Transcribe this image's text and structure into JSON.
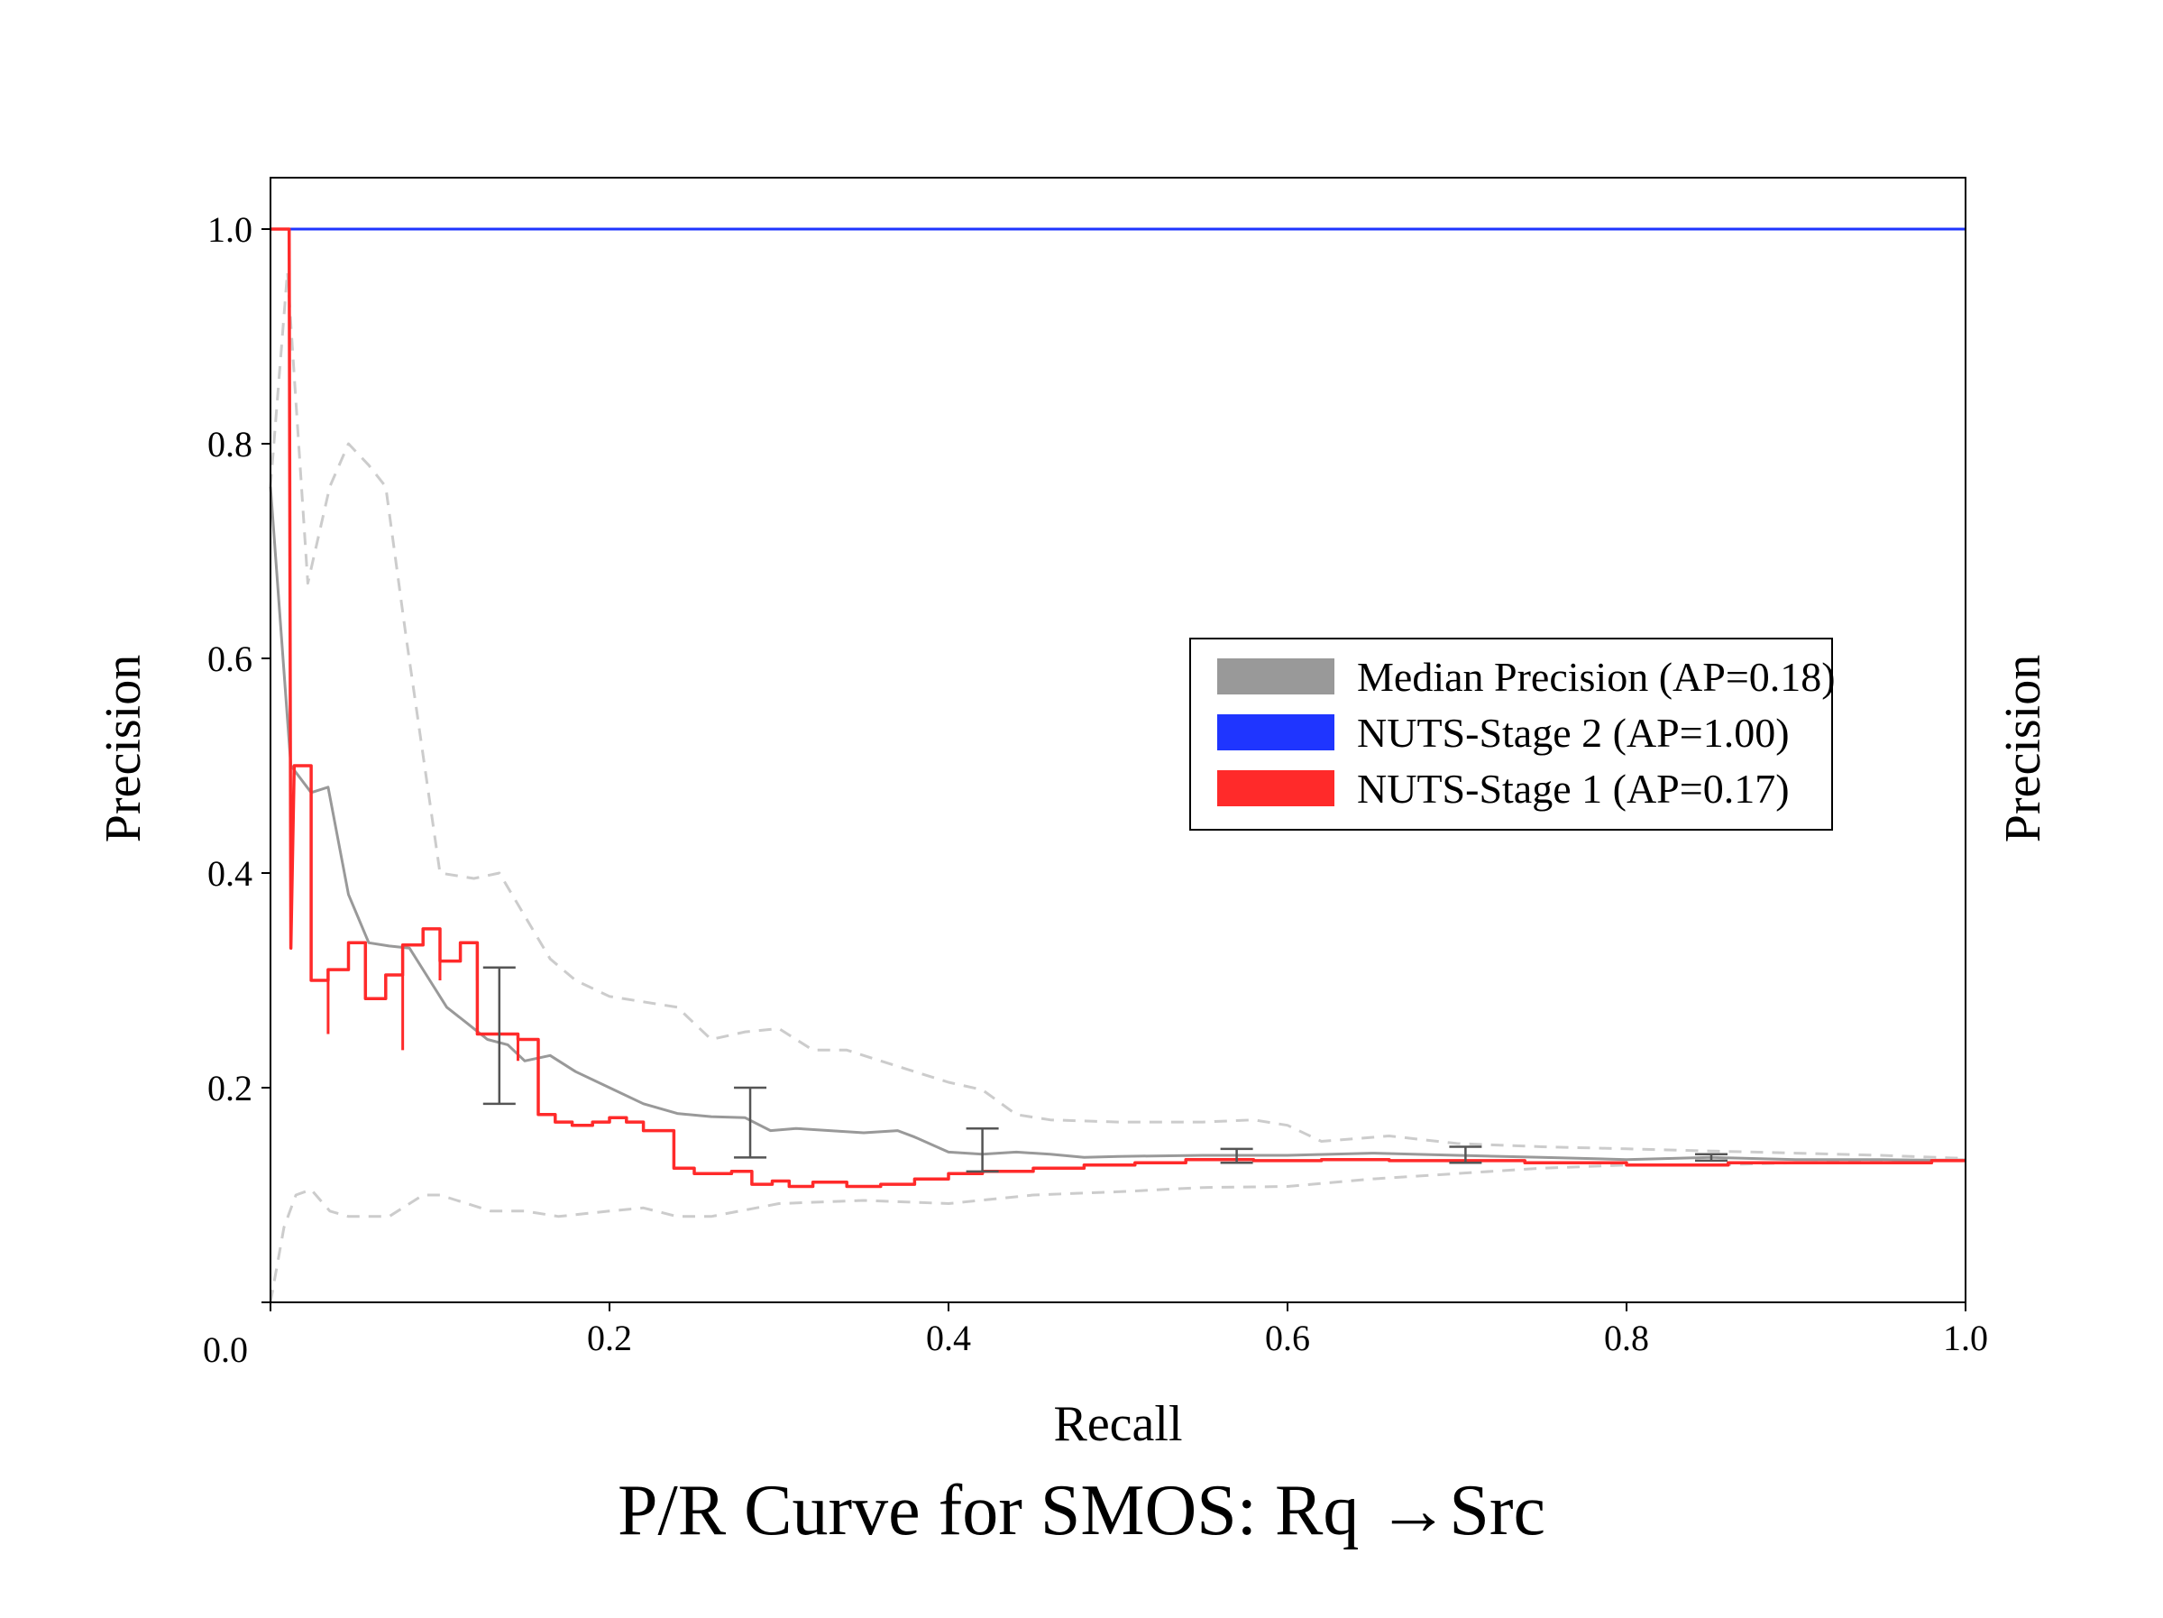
{
  "chart_data": {
    "type": "line",
    "title": "P/R Curve for SMOS: Rq →Src",
    "xlabel": "Recall",
    "ylabel": "Precision",
    "ylabel_right": "Precision",
    "xlim": [
      0.0,
      1.0
    ],
    "ylim": [
      0.0,
      1.05
    ],
    "x_ticks": [
      0.0,
      0.2,
      0.4,
      0.6,
      0.8,
      1.0
    ],
    "x_tick_labels": [
      "0.0",
      "0.2",
      "0.4",
      "0.6",
      "0.8",
      "1.0"
    ],
    "y_ticks": [
      0.0,
      0.2,
      0.4,
      0.6,
      0.8,
      1.0
    ],
    "y_tick_labels": [
      "",
      "0.2",
      "0.4",
      "0.6",
      "0.8",
      "1.0"
    ],
    "grid": false,
    "legend_position": "center-right",
    "series": [
      {
        "name": "Median Precision (AP=0.18)",
        "color": "#999999",
        "style": "solid",
        "x": [
          0.0,
          0.012,
          0.024,
          0.034,
          0.046,
          0.058,
          0.07,
          0.082,
          0.094,
          0.104,
          0.116,
          0.128,
          0.14,
          0.15,
          0.165,
          0.18,
          0.2,
          0.22,
          0.24,
          0.26,
          0.28,
          0.295,
          0.31,
          0.33,
          0.35,
          0.37,
          0.38,
          0.4,
          0.42,
          0.44,
          0.46,
          0.48,
          0.5,
          0.55,
          0.6,
          0.65,
          0.7,
          0.75,
          0.8,
          0.85,
          0.9,
          0.95,
          1.0
        ],
        "y": [
          0.76,
          0.5,
          0.475,
          0.48,
          0.38,
          0.335,
          0.332,
          0.33,
          0.3,
          0.275,
          0.26,
          0.245,
          0.24,
          0.225,
          0.23,
          0.215,
          0.2,
          0.185,
          0.176,
          0.173,
          0.172,
          0.16,
          0.162,
          0.16,
          0.158,
          0.16,
          0.154,
          0.14,
          0.138,
          0.14,
          0.138,
          0.135,
          0.136,
          0.137,
          0.137,
          0.139,
          0.137,
          0.135,
          0.133,
          0.135,
          0.133,
          0.133,
          0.132
        ]
      },
      {
        "name": "Upper band",
        "color": "#cccccc",
        "style": "dashed",
        "x": [
          0.0,
          0.01,
          0.022,
          0.035,
          0.046,
          0.058,
          0.068,
          0.08,
          0.1,
          0.12,
          0.135,
          0.15,
          0.165,
          0.18,
          0.2,
          0.22,
          0.24,
          0.26,
          0.28,
          0.3,
          0.32,
          0.34,
          0.36,
          0.38,
          0.4,
          0.42,
          0.44,
          0.46,
          0.5,
          0.55,
          0.58,
          0.6,
          0.62,
          0.66,
          0.7,
          0.75,
          0.8,
          0.85,
          0.9,
          0.95,
          1.0
        ],
        "y": [
          0.76,
          0.96,
          0.67,
          0.76,
          0.8,
          0.78,
          0.76,
          0.62,
          0.4,
          0.395,
          0.4,
          0.36,
          0.32,
          0.3,
          0.285,
          0.28,
          0.275,
          0.245,
          0.252,
          0.255,
          0.235,
          0.235,
          0.225,
          0.215,
          0.205,
          0.198,
          0.175,
          0.17,
          0.168,
          0.168,
          0.17,
          0.165,
          0.15,
          0.155,
          0.148,
          0.145,
          0.143,
          0.141,
          0.139,
          0.137,
          0.134
        ]
      },
      {
        "name": "Lower band",
        "color": "#cccccc",
        "style": "dashed",
        "x": [
          0.0,
          0.008,
          0.015,
          0.024,
          0.035,
          0.046,
          0.058,
          0.07,
          0.09,
          0.1,
          0.11,
          0.13,
          0.15,
          0.17,
          0.2,
          0.22,
          0.24,
          0.26,
          0.3,
          0.35,
          0.4,
          0.45,
          0.5,
          0.55,
          0.6,
          0.65,
          0.7,
          0.75,
          0.8,
          0.85,
          0.9,
          0.95,
          1.0
        ],
        "y": [
          0.0,
          0.07,
          0.1,
          0.105,
          0.085,
          0.08,
          0.08,
          0.08,
          0.1,
          0.1,
          0.095,
          0.085,
          0.085,
          0.08,
          0.085,
          0.088,
          0.08,
          0.08,
          0.092,
          0.095,
          0.092,
          0.1,
          0.103,
          0.107,
          0.108,
          0.115,
          0.12,
          0.125,
          0.128,
          0.128,
          0.13,
          0.132,
          0.133
        ]
      },
      {
        "name": "NUTS-Stage 2 (AP=1.00)",
        "color": "#1f35ff",
        "style": "solid",
        "x": [
          0.0,
          1.0
        ],
        "y": [
          1.0,
          1.0
        ]
      },
      {
        "name": "NUTS-Stage 1 (AP=0.17)",
        "color": "#ff2a2a",
        "style": "step",
        "x": [
          0.0,
          0.011,
          0.012,
          0.014,
          0.014,
          0.024,
          0.024,
          0.034,
          0.034,
          0.046,
          0.046,
          0.056,
          0.056,
          0.068,
          0.068,
          0.078,
          0.078,
          0.09,
          0.09,
          0.1,
          0.1,
          0.112,
          0.112,
          0.122,
          0.122,
          0.134,
          0.134,
          0.146,
          0.146,
          0.158,
          0.158,
          0.168,
          0.168,
          0.178,
          0.178,
          0.19,
          0.19,
          0.2,
          0.2,
          0.21,
          0.21,
          0.22,
          0.22,
          0.238,
          0.238,
          0.25,
          0.25,
          0.26,
          0.26,
          0.272,
          0.272,
          0.284,
          0.284,
          0.296,
          0.296,
          0.306,
          0.306,
          0.32,
          0.32,
          0.34,
          0.34,
          0.36,
          0.36,
          0.38,
          0.38,
          0.4,
          0.4,
          0.42,
          0.42,
          0.45,
          0.45,
          0.48,
          0.48,
          0.51,
          0.51,
          0.54,
          0.54,
          0.58,
          0.58,
          0.62,
          0.62,
          0.66,
          0.66,
          0.7,
          0.7,
          0.74,
          0.74,
          0.8,
          0.8,
          0.86,
          0.86,
          0.92,
          0.92,
          0.98,
          0.98,
          1.0
        ],
        "y": [
          1.0,
          1.0,
          0.33,
          0.5,
          0.5,
          0.5,
          0.3,
          0.3,
          0.31,
          0.31,
          0.335,
          0.335,
          0.283,
          0.283,
          0.305,
          0.305,
          0.333,
          0.333,
          0.348,
          0.348,
          0.318,
          0.318,
          0.335,
          0.335,
          0.25,
          0.25,
          0.25,
          0.25,
          0.245,
          0.245,
          0.175,
          0.175,
          0.168,
          0.168,
          0.165,
          0.165,
          0.168,
          0.168,
          0.172,
          0.172,
          0.168,
          0.168,
          0.16,
          0.16,
          0.125,
          0.125,
          0.12,
          0.12,
          0.12,
          0.12,
          0.122,
          0.122,
          0.11,
          0.11,
          0.113,
          0.113,
          0.108,
          0.108,
          0.112,
          0.112,
          0.108,
          0.108,
          0.11,
          0.11,
          0.115,
          0.115,
          0.12,
          0.12,
          0.122,
          0.122,
          0.125,
          0.125,
          0.128,
          0.128,
          0.13,
          0.13,
          0.133,
          0.133,
          0.132,
          0.132,
          0.133,
          0.133,
          0.132,
          0.132,
          0.132,
          0.132,
          0.13,
          0.13,
          0.128,
          0.128,
          0.13,
          0.13,
          0.13,
          0.13,
          0.132,
          0.132
        ]
      }
    ],
    "error_bars": {
      "color": "#555555",
      "x": [
        0.135,
        0.283,
        0.42,
        0.57,
        0.705,
        0.85
      ],
      "lower": [
        0.185,
        0.135,
        0.122,
        0.13,
        0.13,
        0.132
      ],
      "upper": [
        0.312,
        0.2,
        0.162,
        0.143,
        0.145,
        0.138
      ]
    },
    "red_spikes": {
      "x": [
        0.034,
        0.056,
        0.078,
        0.1,
        0.122,
        0.146
      ],
      "y_top": [
        0.31,
        0.335,
        0.305,
        0.348,
        0.335,
        0.25
      ],
      "y_bottom": [
        0.25,
        0.29,
        0.235,
        0.3,
        0.3,
        0.225
      ]
    },
    "legend": [
      {
        "label": "Median Precision (AP=0.18)",
        "color": "#999999"
      },
      {
        "label": "NUTS-Stage 2 (AP=1.00)",
        "color": "#1f35ff"
      },
      {
        "label": "NUTS-Stage 1 (AP=0.17)",
        "color": "#ff2a2a"
      }
    ]
  }
}
